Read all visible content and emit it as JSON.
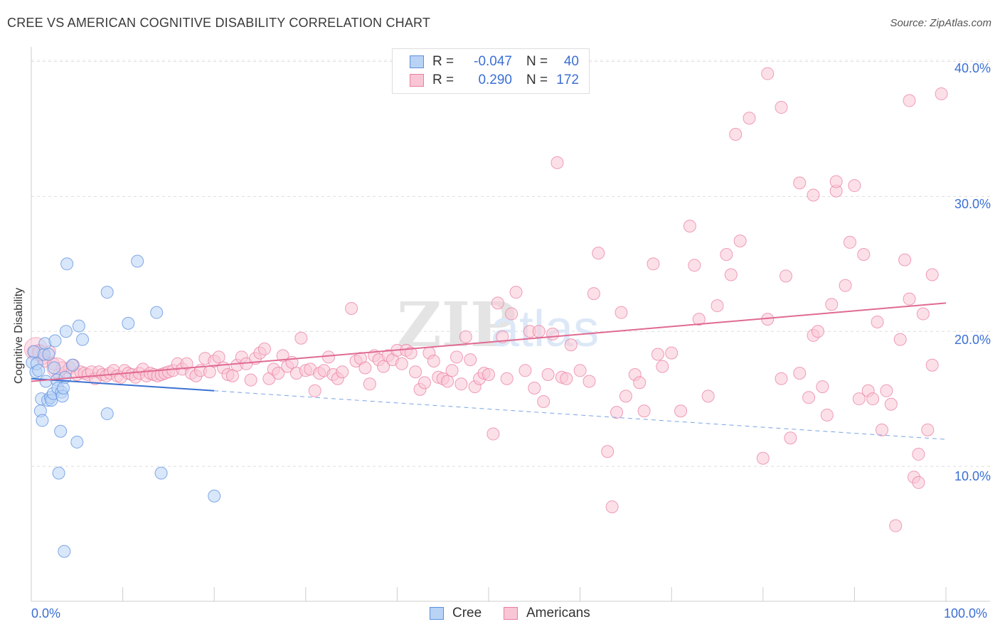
{
  "header": {
    "title": "CREE VS AMERICAN COGNITIVE DISABILITY CORRELATION CHART",
    "source": "Source: ZipAtlas.com"
  },
  "watermark": {
    "text_zip": "ZIP",
    "text_atlas": "atlas"
  },
  "legend_top": {
    "rows": [
      {
        "r_label": "R =",
        "r_value": "-0.047",
        "n_label": "N =",
        "n_value": "40",
        "color": "#5b8fe0",
        "fill": "#b9d3f5"
      },
      {
        "r_label": "R =",
        "r_value": "0.290",
        "n_label": "N =",
        "n_value": "172",
        "color": "#e97fa0",
        "fill": "#f9c6d5"
      }
    ]
  },
  "legend_bottom": {
    "items": [
      {
        "label": "Cree",
        "color": "#5b8fe0",
        "fill": "#b9d3f5"
      },
      {
        "label": "Americans",
        "color": "#e97fa0",
        "fill": "#f9c6d5"
      }
    ]
  },
  "axes": {
    "ylabel": "Cognitive Disability",
    "x_tick_labels": {
      "left": "0.0%",
      "right": "100.0%"
    },
    "y_tick_labels": [
      "10.0%",
      "20.0%",
      "30.0%",
      "40.0%"
    ]
  },
  "chart_data": {
    "type": "scatter",
    "title": "CREE VS AMERICAN COGNITIVE DISABILITY CORRELATION CHART",
    "xlabel": "",
    "ylabel": "Cognitive Disability",
    "xlim": [
      0,
      100
    ],
    "ylim": [
      0,
      41.5
    ],
    "y_ticks": [
      10,
      20,
      30,
      40
    ],
    "grid": "horizontal dashed",
    "legend": "top-center",
    "series": [
      {
        "name": "Cree",
        "color": "#5b8fe0",
        "fill": "#b9d3f5",
        "trend": {
          "x0": 0,
          "y0": 16.5,
          "x1": 20,
          "y1": 15.6,
          "dashed_to_x": 100,
          "dashed_to_y": 12.0
        },
        "points": [
          [
            0.1,
            17.7
          ],
          [
            0.3,
            18.5
          ],
          [
            0.5,
            17.0
          ],
          [
            0.6,
            17.6
          ],
          [
            0.8,
            17.1
          ],
          [
            1.0,
            14.1
          ],
          [
            1.1,
            15.0
          ],
          [
            1.2,
            13.4
          ],
          [
            1.4,
            18.3
          ],
          [
            1.5,
            19.1
          ],
          [
            1.6,
            16.3
          ],
          [
            1.8,
            14.9
          ],
          [
            1.9,
            18.3
          ],
          [
            2.1,
            15.1
          ],
          [
            2.2,
            14.9
          ],
          [
            2.4,
            15.4
          ],
          [
            2.5,
            17.3
          ],
          [
            2.6,
            19.3
          ],
          [
            2.8,
            16.4
          ],
          [
            2.9,
            15.8
          ],
          [
            3.0,
            9.5
          ],
          [
            3.2,
            12.6
          ],
          [
            3.3,
            15.5
          ],
          [
            3.4,
            15.2
          ],
          [
            3.5,
            15.8
          ],
          [
            3.6,
            3.7
          ],
          [
            3.7,
            16.6
          ],
          [
            3.8,
            20.0
          ],
          [
            3.9,
            25.0
          ],
          [
            4.5,
            17.5
          ],
          [
            5.0,
            11.8
          ],
          [
            5.2,
            20.4
          ],
          [
            5.6,
            19.4
          ],
          [
            8.3,
            22.9
          ],
          [
            8.3,
            13.9
          ],
          [
            10.6,
            20.6
          ],
          [
            11.6,
            25.2
          ],
          [
            13.7,
            21.4
          ],
          [
            14.2,
            9.5
          ],
          [
            20.0,
            7.8
          ]
        ]
      },
      {
        "name": "Americans",
        "color": "#e97fa0",
        "fill": "#f9c6d5",
        "trend": {
          "x0": 0,
          "y0": 16.3,
          "x1": 100,
          "y1": 22.1
        },
        "points": [
          [
            0.2,
            18.5
          ],
          [
            0.8,
            18.6
          ],
          [
            1.2,
            18.0
          ],
          [
            1.5,
            17.8
          ],
          [
            2.0,
            18.5
          ],
          [
            2.4,
            17.6
          ],
          [
            3.0,
            16.8
          ],
          [
            3.4,
            17.3
          ],
          [
            3.8,
            17.0
          ],
          [
            4.2,
            17.3
          ],
          [
            4.6,
            17.5
          ],
          [
            5.0,
            16.8
          ],
          [
            5.4,
            17.0
          ],
          [
            5.8,
            16.9
          ],
          [
            6.2,
            16.8
          ],
          [
            6.6,
            17.0
          ],
          [
            7.0,
            16.5
          ],
          [
            7.4,
            17.0
          ],
          [
            7.8,
            16.8
          ],
          [
            8.2,
            16.7
          ],
          [
            8.6,
            16.9
          ],
          [
            9.0,
            17.1
          ],
          [
            9.4,
            16.7
          ],
          [
            9.8,
            16.6
          ],
          [
            10.2,
            17.1
          ],
          [
            10.6,
            16.9
          ],
          [
            11.0,
            16.8
          ],
          [
            11.4,
            16.6
          ],
          [
            11.8,
            16.9
          ],
          [
            12.2,
            17.2
          ],
          [
            12.6,
            16.7
          ],
          [
            13.0,
            16.9
          ],
          [
            13.4,
            16.8
          ],
          [
            13.8,
            16.7
          ],
          [
            14.2,
            16.8
          ],
          [
            14.6,
            16.9
          ],
          [
            15.0,
            17.0
          ],
          [
            15.5,
            17.1
          ],
          [
            16.0,
            17.6
          ],
          [
            16.5,
            17.2
          ],
          [
            17.0,
            17.6
          ],
          [
            17.5,
            16.9
          ],
          [
            18.0,
            16.7
          ],
          [
            18.5,
            17.1
          ],
          [
            19.0,
            18.0
          ],
          [
            19.5,
            17.0
          ],
          [
            20.0,
            17.8
          ],
          [
            20.5,
            18.1
          ],
          [
            21.0,
            17.3
          ],
          [
            21.5,
            16.8
          ],
          [
            22.0,
            16.7
          ],
          [
            22.5,
            17.5
          ],
          [
            23.0,
            18.1
          ],
          [
            23.5,
            17.6
          ],
          [
            24.0,
            16.4
          ],
          [
            24.5,
            18.0
          ],
          [
            25.0,
            18.4
          ],
          [
            25.5,
            18.7
          ],
          [
            26.0,
            16.5
          ],
          [
            26.5,
            17.2
          ],
          [
            27.0,
            16.9
          ],
          [
            27.5,
            18.2
          ],
          [
            28.0,
            17.4
          ],
          [
            28.5,
            17.7
          ],
          [
            29.0,
            16.9
          ],
          [
            29.5,
            19.5
          ],
          [
            30.0,
            17.1
          ],
          [
            30.5,
            17.2
          ],
          [
            31.0,
            15.6
          ],
          [
            31.5,
            16.9
          ],
          [
            32.0,
            17.1
          ],
          [
            32.5,
            18.1
          ],
          [
            33.0,
            16.8
          ],
          [
            33.5,
            16.5
          ],
          [
            34.0,
            17.0
          ],
          [
            35.0,
            21.7
          ],
          [
            35.5,
            17.8
          ],
          [
            36.0,
            18.0
          ],
          [
            36.5,
            17.3
          ],
          [
            37.0,
            16.1
          ],
          [
            37.5,
            18.2
          ],
          [
            38.0,
            17.9
          ],
          [
            38.5,
            17.4
          ],
          [
            39.0,
            18.2
          ],
          [
            39.5,
            17.9
          ],
          [
            40.0,
            18.6
          ],
          [
            40.5,
            17.6
          ],
          [
            41.0,
            18.6
          ],
          [
            41.5,
            18.4
          ],
          [
            42.0,
            17.0
          ],
          [
            42.5,
            15.7
          ],
          [
            43.0,
            16.2
          ],
          [
            43.5,
            18.4
          ],
          [
            44.0,
            17.8
          ],
          [
            44.5,
            16.6
          ],
          [
            45.0,
            16.5
          ],
          [
            45.5,
            16.3
          ],
          [
            46.0,
            17.1
          ],
          [
            46.5,
            18.1
          ],
          [
            47.0,
            16.1
          ],
          [
            47.5,
            19.6
          ],
          [
            48.0,
            17.9
          ],
          [
            48.5,
            15.9
          ],
          [
            49.0,
            16.5
          ],
          [
            49.5,
            16.9
          ],
          [
            50.0,
            16.8
          ],
          [
            52.0,
            16.5
          ],
          [
            54.0,
            17.1
          ],
          [
            55.0,
            15.8
          ],
          [
            56.5,
            16.8
          ],
          [
            58.0,
            16.6
          ],
          [
            50.5,
            12.4
          ],
          [
            51.0,
            22.1
          ],
          [
            51.5,
            19.6
          ],
          [
            52.5,
            21.3
          ],
          [
            53.0,
            22.9
          ],
          [
            54.5,
            20.0
          ],
          [
            55.5,
            20.0
          ],
          [
            56.0,
            14.8
          ],
          [
            57.0,
            19.8
          ],
          [
            57.5,
            32.5
          ],
          [
            58.5,
            16.5
          ],
          [
            59.0,
            19.0
          ],
          [
            60.0,
            17.1
          ],
          [
            61.0,
            16.3
          ],
          [
            61.5,
            22.8
          ],
          [
            62.0,
            25.8
          ],
          [
            63.0,
            11.1
          ],
          [
            63.5,
            7.0
          ],
          [
            64.0,
            14.0
          ],
          [
            64.5,
            21.4
          ],
          [
            65.0,
            15.2
          ],
          [
            66.0,
            16.8
          ],
          [
            66.5,
            16.2
          ],
          [
            67.0,
            14.1
          ],
          [
            68.0,
            25.0
          ],
          [
            68.5,
            18.3
          ],
          [
            69.0,
            17.4
          ],
          [
            70.0,
            18.4
          ],
          [
            71.0,
            14.1
          ],
          [
            72.0,
            27.8
          ],
          [
            72.5,
            24.9
          ],
          [
            73.0,
            20.9
          ],
          [
            74.0,
            15.2
          ],
          [
            75.0,
            21.9
          ],
          [
            76.0,
            25.7
          ],
          [
            76.5,
            24.2
          ],
          [
            77.0,
            34.6
          ],
          [
            77.5,
            26.7
          ],
          [
            80.0,
            10.6
          ],
          [
            80.5,
            20.9
          ],
          [
            82.0,
            16.5
          ],
          [
            82.5,
            24.1
          ],
          [
            83.0,
            12.1
          ],
          [
            84.0,
            16.9
          ],
          [
            85.0,
            15.1
          ],
          [
            85.5,
            19.7
          ],
          [
            86.0,
            20.0
          ],
          [
            86.5,
            15.9
          ],
          [
            87.0,
            13.8
          ],
          [
            87.5,
            22.0
          ],
          [
            88.0,
            30.4
          ],
          [
            89.0,
            23.4
          ],
          [
            90.0,
            30.8
          ],
          [
            90.5,
            15.0
          ],
          [
            91.5,
            15.6
          ],
          [
            92.0,
            15.0
          ],
          [
            92.5,
            20.7
          ],
          [
            93.5,
            15.6
          ],
          [
            94.0,
            14.6
          ],
          [
            95.0,
            19.4
          ],
          [
            96.0,
            22.4
          ],
          [
            97.0,
            10.9
          ],
          [
            97.5,
            21.3
          ],
          [
            98.0,
            12.7
          ],
          [
            98.5,
            24.2
          ]
        ]
      }
    ],
    "american_outliers": [
      [
        78.5,
        35.8
      ],
      [
        80.5,
        39.1
      ],
      [
        82.0,
        36.6
      ],
      [
        84.0,
        31.0
      ],
      [
        85.5,
        30.1
      ],
      [
        88.0,
        31.1
      ],
      [
        89.5,
        26.6
      ],
      [
        91.0,
        25.7
      ],
      [
        93.0,
        12.7
      ],
      [
        94.5,
        5.6
      ],
      [
        96.5,
        9.2
      ],
      [
        97.0,
        8.8
      ],
      [
        98.5,
        17.5
      ],
      [
        99.5,
        37.6
      ],
      [
        96.0,
        37.1
      ],
      [
        95.5,
        25.3
      ]
    ]
  }
}
